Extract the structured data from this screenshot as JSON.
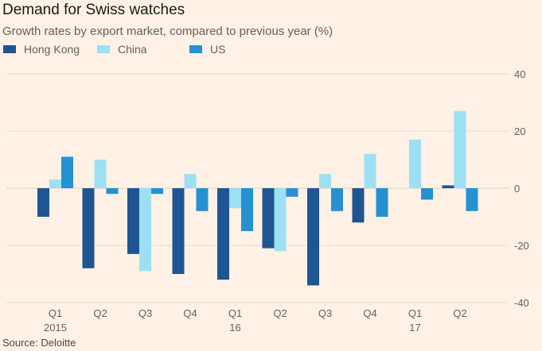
{
  "chart_data": {
    "type": "bar",
    "title": "Demand for Swiss watches",
    "subtitle": "Growth rates by export market, compared to previous year (%)",
    "xlabel": "",
    "ylabel": "",
    "categories": [
      "Q1 2015",
      "Q2 2015",
      "Q3 2015",
      "Q4 2015",
      "Q1 2016",
      "Q2 2016",
      "Q3 2016",
      "Q4 2016",
      "Q1 2017",
      "Q2 2017"
    ],
    "x_tick_labels": [
      {
        "line1": "Q1",
        "line2": "2015"
      },
      {
        "line1": "Q2",
        "line2": ""
      },
      {
        "line1": "Q3",
        "line2": ""
      },
      {
        "line1": "Q4",
        "line2": ""
      },
      {
        "line1": "Q1",
        "line2": "16"
      },
      {
        "line1": "Q2",
        "line2": ""
      },
      {
        "line1": "Q3",
        "line2": ""
      },
      {
        "line1": "Q4",
        "line2": ""
      },
      {
        "line1": "Q1",
        "line2": "17"
      },
      {
        "line1": "Q2",
        "line2": ""
      }
    ],
    "series": [
      {
        "name": "Hong Kong",
        "color": "#1f5592",
        "values": [
          -10,
          -28,
          -23,
          -30,
          -32,
          -21,
          -34,
          -12,
          0,
          1
        ]
      },
      {
        "name": "China",
        "color": "#9de0f3",
        "values": [
          3,
          10,
          -29,
          5,
          -7,
          -22,
          5,
          12,
          17,
          27
        ]
      },
      {
        "name": "US",
        "color": "#2591d1",
        "values": [
          11,
          -2,
          -2,
          -8,
          -15,
          -3,
          -8,
          -10,
          -4,
          -8
        ]
      }
    ],
    "ylim": [
      -40,
      40
    ],
    "yticks": [
      40,
      20,
      0,
      -20,
      -40
    ],
    "grid": true,
    "y_axis_side": "right",
    "legend_position": "top-left",
    "source": "Source: Deloitte"
  }
}
